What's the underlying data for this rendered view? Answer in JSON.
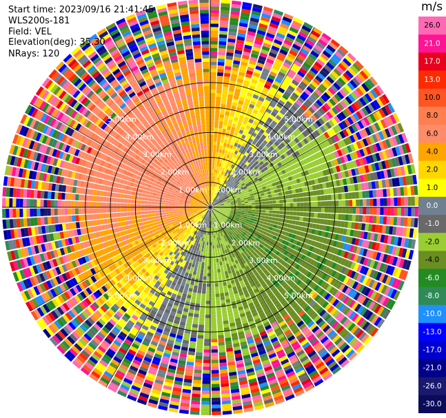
{
  "header": {
    "start_time": "Start time: 2023/09/16 21:41:45",
    "instrument": "WLS200s-181",
    "field": "Field: VEL",
    "elevation": "Elevation(deg): 35.30",
    "nrays": "NRays: 120"
  },
  "colorbar": {
    "unit": "m/s",
    "ticks": [
      "26.0",
      "21.0",
      "17.0",
      "13.0",
      "10.0",
      "8.0",
      "6.0",
      "4.0",
      "2.0",
      "1.0",
      "0.0",
      "-1.0",
      "-2.0",
      "-4.0",
      "-6.0",
      "-8.0",
      "-10.0",
      "-13.0",
      "-17.0",
      "-21.0",
      "-26.0",
      "-30.0"
    ],
    "colors": [
      "#ff69b4",
      "#ff1493",
      "#e8001c",
      "#ff2a00",
      "#ff5522",
      "#ff7f50",
      "#ff8c69",
      "#ffa500",
      "#ffd700",
      "#ffff00",
      "#708090",
      "#696969",
      "#9acd32",
      "#6b8e23",
      "#228b22",
      "#2e8b57",
      "#1e90ff",
      "#0000ff",
      "#0000cd",
      "#00008b",
      "#191970",
      "#0b0b5a"
    ]
  },
  "chart_data": {
    "type": "heatmap",
    "projection": "polar (PPI)",
    "field": "VEL",
    "units": "m/s",
    "nrays": 120,
    "elevation_deg": 35.3,
    "range_rings_km": [
      1.0,
      2.0,
      3.0,
      4.0,
      5.0
    ],
    "ring_labels": [
      "1.00km",
      "2.00km",
      "3.00km",
      "4.00km",
      "5.00km"
    ],
    "color_levels": [
      26.0,
      21.0,
      17.0,
      13.0,
      10.0,
      8.0,
      6.0,
      4.0,
      2.0,
      1.0,
      0.0,
      -1.0,
      -2.0,
      -4.0,
      -6.0,
      -8.0,
      -10.0,
      -13.0,
      -17.0,
      -21.0,
      -26.0,
      -30.0
    ],
    "max_range_km": 5.0,
    "pattern": "positive velocities (yellow/orange) toward west/north-west, near-zero grey north and south-west, negative (green) toward east/south-east; beyond about 3.5km noisy multicolor returns"
  }
}
